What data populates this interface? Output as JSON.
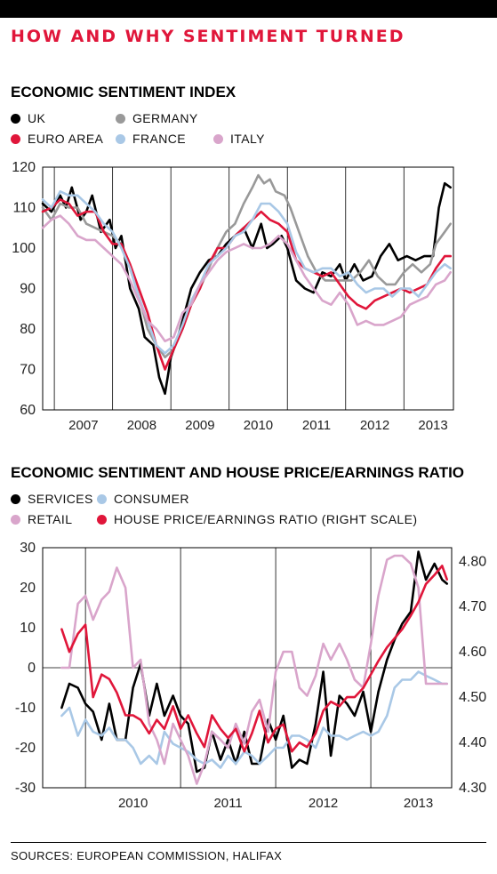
{
  "headline": "HOW AND WHY SENTIMENT TURNED",
  "source": "SOURCES: EUROPEAN COMMISSION, HALIFAX",
  "chart_data": [
    {
      "type": "line",
      "title": "ECONOMIC SENTIMENT INDEX",
      "xlabel": "",
      "ylabel": "",
      "xlim": [
        2006.8,
        2013.85
      ],
      "ylim": [
        60,
        120
      ],
      "yticks": [
        60,
        70,
        80,
        90,
        100,
        110,
        120
      ],
      "xtick_labels": [
        "2007",
        "2008",
        "2009",
        "2010",
        "2011",
        "2012",
        "2013"
      ],
      "grid": "vertical year lines",
      "legend_placement": "top-left",
      "series": [
        {
          "name": "UK",
          "color": "#000000",
          "x": [
            2006.8,
            2006.95,
            2007.1,
            2007.2,
            2007.3,
            2007.45,
            2007.55,
            2007.65,
            2007.8,
            2007.95,
            2008.05,
            2008.15,
            2008.3,
            2008.45,
            2008.55,
            2008.7,
            2008.8,
            2008.9,
            2009.0,
            2009.1,
            2009.2,
            2009.35,
            2009.5,
            2009.65,
            2009.8,
            2009.95,
            2010.1,
            2010.25,
            2010.4,
            2010.55,
            2010.65,
            2010.75,
            2010.9,
            2011.0,
            2011.15,
            2011.3,
            2011.45,
            2011.6,
            2011.75,
            2011.9,
            2012.0,
            2012.15,
            2012.3,
            2012.45,
            2012.6,
            2012.75,
            2012.9,
            2013.05,
            2013.2,
            2013.35,
            2013.5,
            2013.6,
            2013.7,
            2013.8
          ],
          "y": [
            111,
            109,
            113,
            110,
            115,
            107,
            109,
            113,
            104,
            107,
            100,
            103,
            90,
            85,
            78,
            76,
            68,
            64,
            73,
            77,
            82,
            90,
            94,
            97,
            98,
            101,
            103,
            105,
            100,
            106,
            100,
            101,
            103,
            100,
            92,
            90,
            89,
            94,
            93,
            96,
            92,
            96,
            92,
            93,
            98,
            101,
            97,
            98,
            97,
            98,
            98,
            110,
            116,
            115
          ]
        },
        {
          "name": "GERMANY",
          "color": "#999999",
          "x": [
            2006.8,
            2006.95,
            2007.1,
            2007.25,
            2007.4,
            2007.55,
            2007.7,
            2007.85,
            2008.0,
            2008.15,
            2008.3,
            2008.45,
            2008.6,
            2008.75,
            2008.9,
            2009.05,
            2009.2,
            2009.35,
            2009.5,
            2009.65,
            2009.8,
            2009.95,
            2010.1,
            2010.25,
            2010.4,
            2010.5,
            2010.6,
            2010.7,
            2010.8,
            2010.95,
            2011.05,
            2011.2,
            2011.35,
            2011.5,
            2011.65,
            2011.8,
            2011.95,
            2012.1,
            2012.25,
            2012.4,
            2012.55,
            2012.7,
            2012.85,
            2013.0,
            2013.15,
            2013.3,
            2013.45,
            2013.55,
            2013.7,
            2013.8
          ],
          "y": [
            110,
            107,
            111,
            110,
            110,
            106,
            105,
            104,
            103,
            101,
            95,
            88,
            80,
            76,
            73,
            75,
            80,
            86,
            90,
            95,
            100,
            104,
            106,
            111,
            115,
            118,
            116,
            117,
            114,
            113,
            110,
            104,
            98,
            94,
            92,
            92,
            92,
            92,
            94,
            97,
            93,
            91,
            91,
            94,
            96,
            94,
            96,
            101,
            104,
            106
          ]
        },
        {
          "name": "EURO AREA",
          "color": "#e0163a",
          "x": [
            2006.8,
            2006.95,
            2007.1,
            2007.25,
            2007.4,
            2007.55,
            2007.7,
            2007.85,
            2008.0,
            2008.15,
            2008.3,
            2008.45,
            2008.6,
            2008.75,
            2008.9,
            2009.05,
            2009.2,
            2009.35,
            2009.5,
            2009.65,
            2009.8,
            2009.95,
            2010.1,
            2010.25,
            2010.4,
            2010.55,
            2010.7,
            2010.85,
            2011.0,
            2011.15,
            2011.3,
            2011.45,
            2011.6,
            2011.75,
            2011.9,
            2012.05,
            2012.2,
            2012.35,
            2012.5,
            2012.65,
            2012.8,
            2012.95,
            2013.1,
            2013.25,
            2013.4,
            2013.55,
            2013.7,
            2013.8
          ],
          "y": [
            109,
            110,
            112,
            111,
            108,
            109,
            109,
            104,
            101,
            101,
            96,
            90,
            84,
            76,
            70,
            75,
            80,
            86,
            90,
            96,
            100,
            100,
            103,
            105,
            107,
            109,
            107,
            106,
            104,
            97,
            95,
            94,
            93,
            94,
            91,
            88,
            86,
            85,
            87,
            88,
            89,
            90,
            89,
            90,
            91,
            95,
            98,
            98
          ]
        },
        {
          "name": "FRANCE",
          "color": "#a9c8e6",
          "x": [
            2006.8,
            2006.95,
            2007.1,
            2007.25,
            2007.4,
            2007.55,
            2007.7,
            2007.85,
            2008.0,
            2008.15,
            2008.3,
            2008.45,
            2008.6,
            2008.75,
            2008.9,
            2009.05,
            2009.2,
            2009.35,
            2009.5,
            2009.65,
            2009.8,
            2009.95,
            2010.1,
            2010.25,
            2010.4,
            2010.55,
            2010.7,
            2010.85,
            2011.0,
            2011.15,
            2011.3,
            2011.45,
            2011.6,
            2011.75,
            2011.9,
            2012.05,
            2012.2,
            2012.35,
            2012.5,
            2012.65,
            2012.8,
            2012.95,
            2013.1,
            2013.25,
            2013.4,
            2013.55,
            2013.7,
            2013.8
          ],
          "y": [
            112,
            110,
            114,
            113,
            113,
            111,
            109,
            106,
            104,
            100,
            95,
            88,
            82,
            76,
            74,
            76,
            81,
            87,
            91,
            96,
            98,
            100,
            103,
            104,
            107,
            111,
            111,
            109,
            106,
            99,
            95,
            94,
            95,
            95,
            93,
            94,
            91,
            89,
            90,
            90,
            88,
            90,
            90,
            88,
            91,
            94,
            96,
            95
          ]
        },
        {
          "name": "ITALY",
          "color": "#d9a5cb",
          "x": [
            2006.8,
            2006.95,
            2007.1,
            2007.25,
            2007.4,
            2007.55,
            2007.7,
            2007.85,
            2008.0,
            2008.15,
            2008.3,
            2008.45,
            2008.6,
            2008.75,
            2008.9,
            2009.05,
            2009.2,
            2009.35,
            2009.5,
            2009.65,
            2009.8,
            2009.95,
            2010.1,
            2010.25,
            2010.4,
            2010.55,
            2010.7,
            2010.85,
            2011.0,
            2011.15,
            2011.3,
            2011.45,
            2011.6,
            2011.75,
            2011.9,
            2012.05,
            2012.2,
            2012.35,
            2012.5,
            2012.65,
            2012.8,
            2012.95,
            2013.1,
            2013.25,
            2013.4,
            2013.55,
            2013.7,
            2013.8
          ],
          "y": [
            105,
            107,
            108,
            106,
            103,
            102,
            102,
            100,
            98,
            96,
            92,
            87,
            82,
            80,
            77,
            78,
            84,
            86,
            91,
            94,
            97,
            99,
            100,
            101,
            100,
            100,
            101,
            103,
            101,
            97,
            93,
            90,
            87,
            86,
            89,
            86,
            81,
            82,
            81,
            81,
            82,
            83,
            86,
            87,
            88,
            91,
            92,
            94
          ]
        }
      ]
    },
    {
      "type": "line",
      "title": "ECONOMIC SENTIMENT AND HOUSE PRICE/EARNINGS RATIO",
      "xlabel": "",
      "ylabel": "",
      "xlim": [
        2009.55,
        2013.85
      ],
      "ylim": [
        -30,
        30
      ],
      "yticks": [
        -30,
        -20,
        -10,
        0,
        10,
        20,
        30
      ],
      "ylim_right": [
        4.3,
        4.83
      ],
      "yticks_right": [
        4.3,
        4.4,
        4.5,
        4.6,
        4.7,
        4.8
      ],
      "xtick_labels": [
        "2010",
        "2011",
        "2012",
        "2013"
      ],
      "grid": "vertical year lines, zero line",
      "legend_placement": "top-left",
      "series": [
        {
          "name": "SERVICES",
          "color": "#000000",
          "axis": "left",
          "x": [
            2009.75,
            2009.83,
            2009.92,
            2010.0,
            2010.08,
            2010.17,
            2010.25,
            2010.33,
            2010.42,
            2010.5,
            2010.58,
            2010.67,
            2010.75,
            2010.83,
            2010.92,
            2011.0,
            2011.08,
            2011.17,
            2011.25,
            2011.33,
            2011.42,
            2011.5,
            2011.58,
            2011.67,
            2011.75,
            2011.83,
            2011.92,
            2012.0,
            2012.08,
            2012.17,
            2012.25,
            2012.33,
            2012.42,
            2012.5,
            2012.58,
            2012.67,
            2012.75,
            2012.83,
            2012.92,
            2013.0,
            2013.08,
            2013.17,
            2013.25,
            2013.33,
            2013.42,
            2013.5,
            2013.58,
            2013.67,
            2013.75,
            2013.8
          ],
          "y": [
            -10,
            -4,
            -5,
            -9,
            -11,
            -18,
            -9,
            -18,
            -18,
            -5,
            1,
            -12,
            -4,
            -12,
            -7,
            -12,
            -14,
            -26,
            -25,
            -16,
            -23,
            -18,
            -24,
            -16,
            -24,
            -24,
            -13,
            -18,
            -12,
            -25,
            -23,
            -24,
            -14,
            -1,
            -22,
            -7,
            -9,
            -12,
            -6,
            -16,
            -6,
            2,
            7,
            11,
            14,
            29,
            22,
            26,
            22,
            21
          ]
        },
        {
          "name": "CONSUMER",
          "color": "#a9c8e6",
          "axis": "left",
          "x": [
            2009.75,
            2009.83,
            2009.92,
            2010.0,
            2010.08,
            2010.17,
            2010.25,
            2010.33,
            2010.42,
            2010.5,
            2010.58,
            2010.67,
            2010.75,
            2010.83,
            2010.92,
            2011.0,
            2011.08,
            2011.17,
            2011.25,
            2011.33,
            2011.42,
            2011.5,
            2011.58,
            2011.67,
            2011.75,
            2011.83,
            2011.92,
            2012.0,
            2012.08,
            2012.17,
            2012.25,
            2012.33,
            2012.42,
            2012.5,
            2012.58,
            2012.67,
            2012.75,
            2012.83,
            2012.92,
            2013.0,
            2013.08,
            2013.17,
            2013.25,
            2013.33,
            2013.42,
            2013.5,
            2013.58,
            2013.67,
            2013.75,
            2013.8
          ],
          "y": [
            -12,
            -10,
            -17,
            -13,
            -16,
            -17,
            -15,
            -18,
            -18,
            -20,
            -24,
            -22,
            -24,
            -16,
            -19,
            -20,
            -21,
            -23,
            -24,
            -23,
            -25,
            -22,
            -24,
            -21,
            -22,
            -24,
            -22,
            -20,
            -20,
            -17,
            -17,
            -18,
            -20,
            -15,
            -17,
            -17,
            -18,
            -17,
            -16,
            -17,
            -16,
            -12,
            -5,
            -3,
            -3,
            -1,
            -2,
            -3,
            -4,
            -4
          ]
        },
        {
          "name": "RETAIL",
          "color": "#d9a5cb",
          "axis": "left",
          "x": [
            2009.75,
            2009.83,
            2009.92,
            2010.0,
            2010.08,
            2010.17,
            2010.25,
            2010.33,
            2010.42,
            2010.5,
            2010.58,
            2010.67,
            2010.75,
            2010.83,
            2010.92,
            2011.0,
            2011.08,
            2011.17,
            2011.25,
            2011.33,
            2011.42,
            2011.5,
            2011.58,
            2011.67,
            2011.75,
            2011.83,
            2011.92,
            2012.0,
            2012.08,
            2012.17,
            2012.25,
            2012.33,
            2012.42,
            2012.5,
            2012.58,
            2012.67,
            2012.75,
            2012.83,
            2012.92,
            2013.0,
            2013.08,
            2013.17,
            2013.25,
            2013.33,
            2013.42,
            2013.5,
            2013.58,
            2013.67,
            2013.75,
            2013.8
          ],
          "y": [
            0,
            0,
            16,
            18,
            12,
            17,
            19,
            25,
            20,
            0,
            2,
            -14,
            -18,
            -24,
            -14,
            -18,
            -22,
            -29,
            -24,
            -16,
            -18,
            -20,
            -14,
            -19,
            -11,
            -8,
            -16,
            -1,
            4,
            4,
            -5,
            -7,
            -2,
            6,
            2,
            6,
            2,
            -3,
            -5,
            6,
            18,
            27,
            28,
            28,
            26,
            20,
            -4,
            -4,
            -4,
            -4
          ]
        },
        {
          "name": "HOUSE PRICE/EARNINGS RATIO (RIGHT SCALE)",
          "color": "#e0163a",
          "axis": "right",
          "x": [
            2009.75,
            2009.83,
            2009.92,
            2010.0,
            2010.08,
            2010.17,
            2010.25,
            2010.33,
            2010.42,
            2010.5,
            2010.58,
            2010.67,
            2010.75,
            2010.83,
            2010.92,
            2011.0,
            2011.08,
            2011.17,
            2011.25,
            2011.33,
            2011.42,
            2011.5,
            2011.58,
            2011.67,
            2011.75,
            2011.83,
            2011.92,
            2012.0,
            2012.08,
            2012.17,
            2012.25,
            2012.33,
            2012.42,
            2012.5,
            2012.58,
            2012.67,
            2012.75,
            2012.83,
            2012.92,
            2013.0,
            2013.08,
            2013.17,
            2013.25,
            2013.33,
            2013.42,
            2013.5,
            2013.58,
            2013.67,
            2013.75,
            2013.8
          ],
          "y": [
            4.65,
            4.6,
            4.64,
            4.66,
            4.5,
            4.55,
            4.54,
            4.51,
            4.46,
            4.46,
            4.45,
            4.42,
            4.45,
            4.43,
            4.48,
            4.43,
            4.46,
            4.42,
            4.39,
            4.46,
            4.43,
            4.41,
            4.43,
            4.38,
            4.42,
            4.47,
            4.4,
            4.43,
            4.44,
            4.38,
            4.4,
            4.39,
            4.42,
            4.47,
            4.49,
            4.48,
            4.5,
            4.5,
            4.52,
            4.55,
            4.58,
            4.61,
            4.63,
            4.65,
            4.68,
            4.71,
            4.75,
            4.77,
            4.79,
            4.76
          ]
        }
      ]
    }
  ]
}
